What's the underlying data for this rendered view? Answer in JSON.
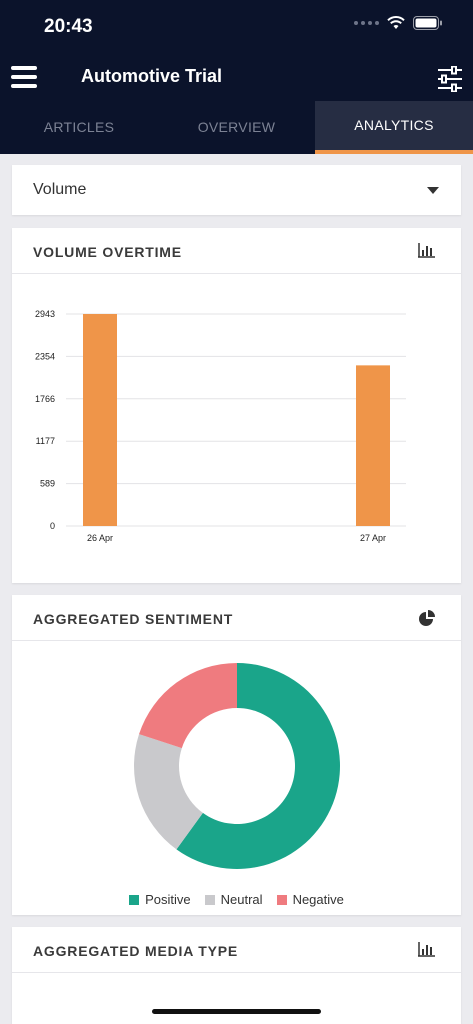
{
  "status": {
    "time": "20:43"
  },
  "header": {
    "title": "Automotive Trial"
  },
  "tabs": [
    {
      "label": "ARTICLES",
      "active": false
    },
    {
      "label": "OVERVIEW",
      "active": false
    },
    {
      "label": "ANALYTICS",
      "active": true
    }
  ],
  "metric_select": {
    "value": "Volume"
  },
  "volume_card": {
    "title": "VOLUME OVERTIME",
    "icon": "bar-chart-icon"
  },
  "sentiment_card": {
    "title": "AGGREGATED SENTIMENT",
    "icon": "pie-chart-icon",
    "legend": [
      {
        "label": "Positive",
        "color": "#1aa58a"
      },
      {
        "label": "Neutral",
        "color": "#c9c9cc"
      },
      {
        "label": "Negative",
        "color": "#ef7b7f"
      }
    ]
  },
  "media_card": {
    "title": "AGGREGATED MEDIA TYPE",
    "icon": "bar-chart-icon"
  },
  "colors": {
    "header_bg": "#0b132b",
    "accent": "#ef9549",
    "bar": "#ef9549"
  },
  "chart_data": [
    {
      "type": "bar",
      "categories": [
        "26 Apr",
        "27 Apr"
      ],
      "values": [
        2943,
        2230
      ],
      "yticks": [
        "0",
        "589",
        "1177",
        "1766",
        "2354",
        "2943"
      ],
      "ylim": [
        0,
        2943
      ],
      "grid": true
    },
    {
      "type": "pie",
      "labels": [
        "Positive",
        "Neutral",
        "Negative"
      ],
      "values": [
        60,
        20,
        20
      ],
      "donut": true
    }
  ]
}
